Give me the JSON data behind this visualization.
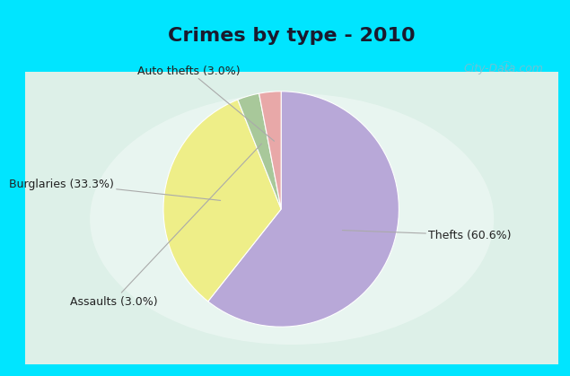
{
  "title": "Crimes by type - 2010",
  "slices": [
    {
      "label": "Thefts (60.6%)",
      "value": 60.6,
      "color": "#b8a8d8"
    },
    {
      "label": "Burglaries (33.3%)",
      "value": 33.3,
      "color": "#eeee88"
    },
    {
      "label": "Assaults (3.0%)",
      "value": 3.0,
      "color": "#a8c89a"
    },
    {
      "label": "Auto thefts (3.0%)",
      "value": 3.0,
      "color": "#e8a8a8"
    }
  ],
  "title_fontsize": 16,
  "title_fontweight": "bold",
  "background_cyan": "#00e5ff",
  "background_inner_center": "#e8f5f0",
  "background_inner_edge": "#c8ede0",
  "label_fontsize": 9,
  "watermark": "City-Data.com",
  "startangle": 90,
  "title_color": "#1a1a2e",
  "label_color": "#222222",
  "line_color": "#aaaaaa"
}
